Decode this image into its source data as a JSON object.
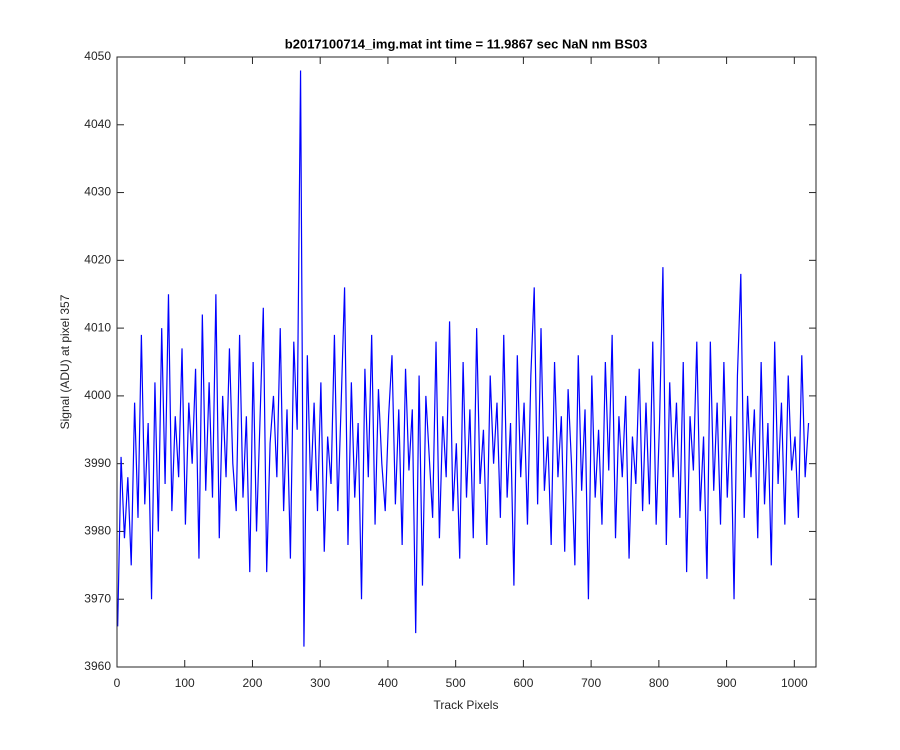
{
  "chart_data": {
    "type": "line",
    "title": "b2017100714_img.mat int time = 11.9867 sec  NaN nm BS03",
    "x_label": "Track Pixels",
    "y_label": "Signal (ADU) at pixel 357",
    "color": "#0000ff",
    "xlim": [
      0,
      1032
    ],
    "ylim": [
      3960,
      4050
    ],
    "xticks": [
      0,
      100,
      200,
      300,
      400,
      500,
      600,
      700,
      800,
      900,
      1000
    ],
    "yticks": [
      3960,
      3970,
      3980,
      3990,
      4000,
      4010,
      4020,
      4030,
      4040,
      4050
    ],
    "x": [
      1,
      6,
      11,
      16,
      21,
      26,
      31,
      36,
      41,
      46,
      51,
      56,
      61,
      66,
      71,
      76,
      81,
      86,
      91,
      96,
      101,
      106,
      111,
      116,
      121,
      126,
      131,
      136,
      141,
      146,
      151,
      156,
      161,
      166,
      171,
      176,
      181,
      186,
      191,
      196,
      201,
      206,
      211,
      216,
      221,
      226,
      231,
      236,
      241,
      246,
      251,
      256,
      261,
      266,
      271,
      276,
      281,
      286,
      291,
      296,
      301,
      306,
      311,
      316,
      321,
      326,
      331,
      336,
      341,
      346,
      351,
      356,
      361,
      366,
      371,
      376,
      381,
      386,
      391,
      396,
      401,
      406,
      411,
      416,
      421,
      426,
      431,
      436,
      441,
      446,
      451,
      456,
      461,
      466,
      471,
      476,
      481,
      486,
      491,
      496,
      501,
      506,
      511,
      516,
      521,
      526,
      531,
      536,
      541,
      546,
      551,
      556,
      561,
      566,
      571,
      576,
      581,
      586,
      591,
      596,
      601,
      606,
      611,
      616,
      621,
      626,
      631,
      636,
      641,
      646,
      651,
      656,
      661,
      666,
      671,
      676,
      681,
      686,
      691,
      696,
      701,
      706,
      711,
      716,
      721,
      726,
      731,
      736,
      741,
      746,
      751,
      756,
      761,
      766,
      771,
      776,
      781,
      786,
      791,
      796,
      801,
      806,
      811,
      816,
      821,
      826,
      831,
      836,
      841,
      846,
      851,
      856,
      861,
      866,
      871,
      876,
      881,
      886,
      891,
      896,
      901,
      906,
      911,
      916,
      921,
      926,
      931,
      936,
      941,
      946,
      951,
      956,
      961,
      966,
      971,
      976,
      981,
      986,
      991,
      996,
      1001,
      1006,
      1011,
      1016,
      1021
    ],
    "values": [
      3966,
      3991,
      3979,
      3988,
      3975,
      3999,
      3982,
      4009,
      3984,
      3996,
      3970,
      4002,
      3980,
      4010,
      3987,
      4015,
      3983,
      3997,
      3988,
      4007,
      3981,
      3999,
      3990,
      4004,
      3976,
      4012,
      3986,
      4002,
      3985,
      4015,
      3979,
      4000,
      3988,
      4007,
      3990,
      3983,
      4009,
      3985,
      3997,
      3974,
      4005,
      3980,
      3996,
      4013,
      3974,
      3993,
      4000,
      3988,
      4010,
      3983,
      3998,
      3976,
      4008,
      3995,
      4048,
      3963,
      4006,
      3986,
      3999,
      3983,
      4002,
      3977,
      3994,
      3987,
      4009,
      3983,
      3999,
      4016,
      3978,
      4002,
      3985,
      3996,
      3970,
      4004,
      3988,
      4009,
      3981,
      4001,
      3990,
      3983,
      3997,
      4006,
      3984,
      3998,
      3978,
      4004,
      3989,
      3998,
      3965,
      4003,
      3972,
      4000,
      3991,
      3982,
      4008,
      3979,
      3997,
      3988,
      4011,
      3983,
      3993,
      3976,
      4005,
      3985,
      3998,
      3979,
      4010,
      3987,
      3995,
      3978,
      4003,
      3990,
      3999,
      3982,
      4009,
      3985,
      3996,
      3972,
      4006,
      3988,
      3999,
      3981,
      4003,
      4016,
      3984,
      4010,
      3986,
      3994,
      3978,
      4005,
      3988,
      3997,
      3977,
      4001,
      3990,
      3975,
      4006,
      3986,
      3998,
      3970,
      4003,
      3985,
      3995,
      3981,
      4005,
      3989,
      4009,
      3979,
      3997,
      3988,
      4000,
      3976,
      3994,
      3987,
      4004,
      3983,
      3999,
      3984,
      4008,
      3981,
      3996,
      4019,
      3978,
      4002,
      3988,
      3999,
      3982,
      4005,
      3974,
      3997,
      3989,
      4008,
      3983,
      3994,
      3973,
      4008,
      3986,
      3999,
      3981,
      4005,
      3985,
      3997,
      3970,
      4003,
      4018,
      3982,
      4000,
      3988,
      3998,
      3979,
      4005,
      3984,
      3996,
      3975,
      4008,
      3987,
      3999,
      3981,
      4003,
      3989,
      3994,
      3982,
      4006,
      3988,
      3996
    ]
  }
}
